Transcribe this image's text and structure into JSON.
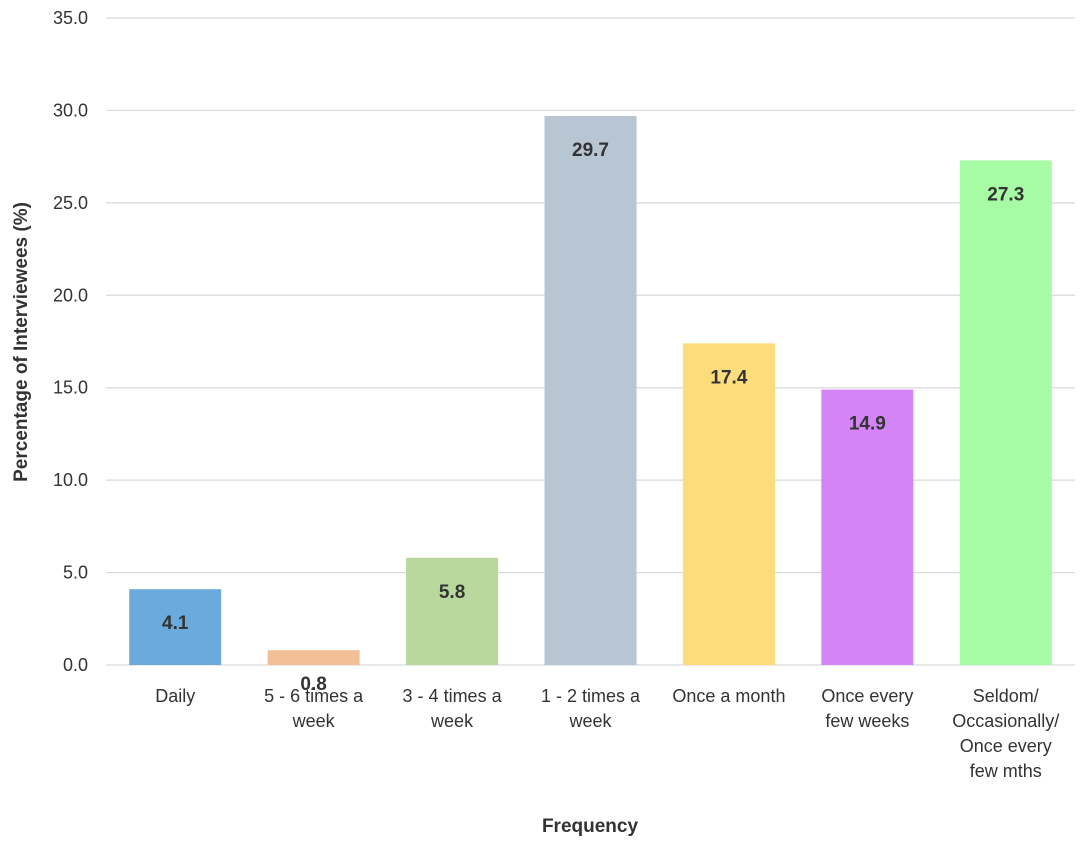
{
  "chart_data": {
    "type": "bar",
    "title": "",
    "xlabel": "Frequency",
    "ylabel": "Percentage of Interviewees (%)",
    "ylim": [
      0,
      35
    ],
    "yticks": [
      "0.0",
      "5.0",
      "10.0",
      "15.0",
      "20.0",
      "25.0",
      "30.0",
      "35.0"
    ],
    "grid": true,
    "categories": [
      [
        "Daily"
      ],
      [
        "5 - 6 times a",
        "week"
      ],
      [
        "3 - 4 times a",
        "week"
      ],
      [
        "1 - 2 times a",
        "week"
      ],
      [
        "Once a month"
      ],
      [
        "Once every",
        "few weeks"
      ],
      [
        "Seldom/",
        "Occasionally/",
        "Once every",
        "few mths"
      ]
    ],
    "values": [
      4.1,
      0.8,
      5.8,
      29.7,
      17.4,
      14.9,
      27.3
    ],
    "value_labels": [
      "4.1",
      "0.8",
      "5.8",
      "29.7",
      "17.4",
      "14.9",
      "27.3"
    ],
    "colors": [
      "#6aaadc",
      "#f4be96",
      "#b8d89e",
      "#b8c5d3",
      "#fddc7c",
      "#d484f7",
      "#a6fba4"
    ]
  }
}
